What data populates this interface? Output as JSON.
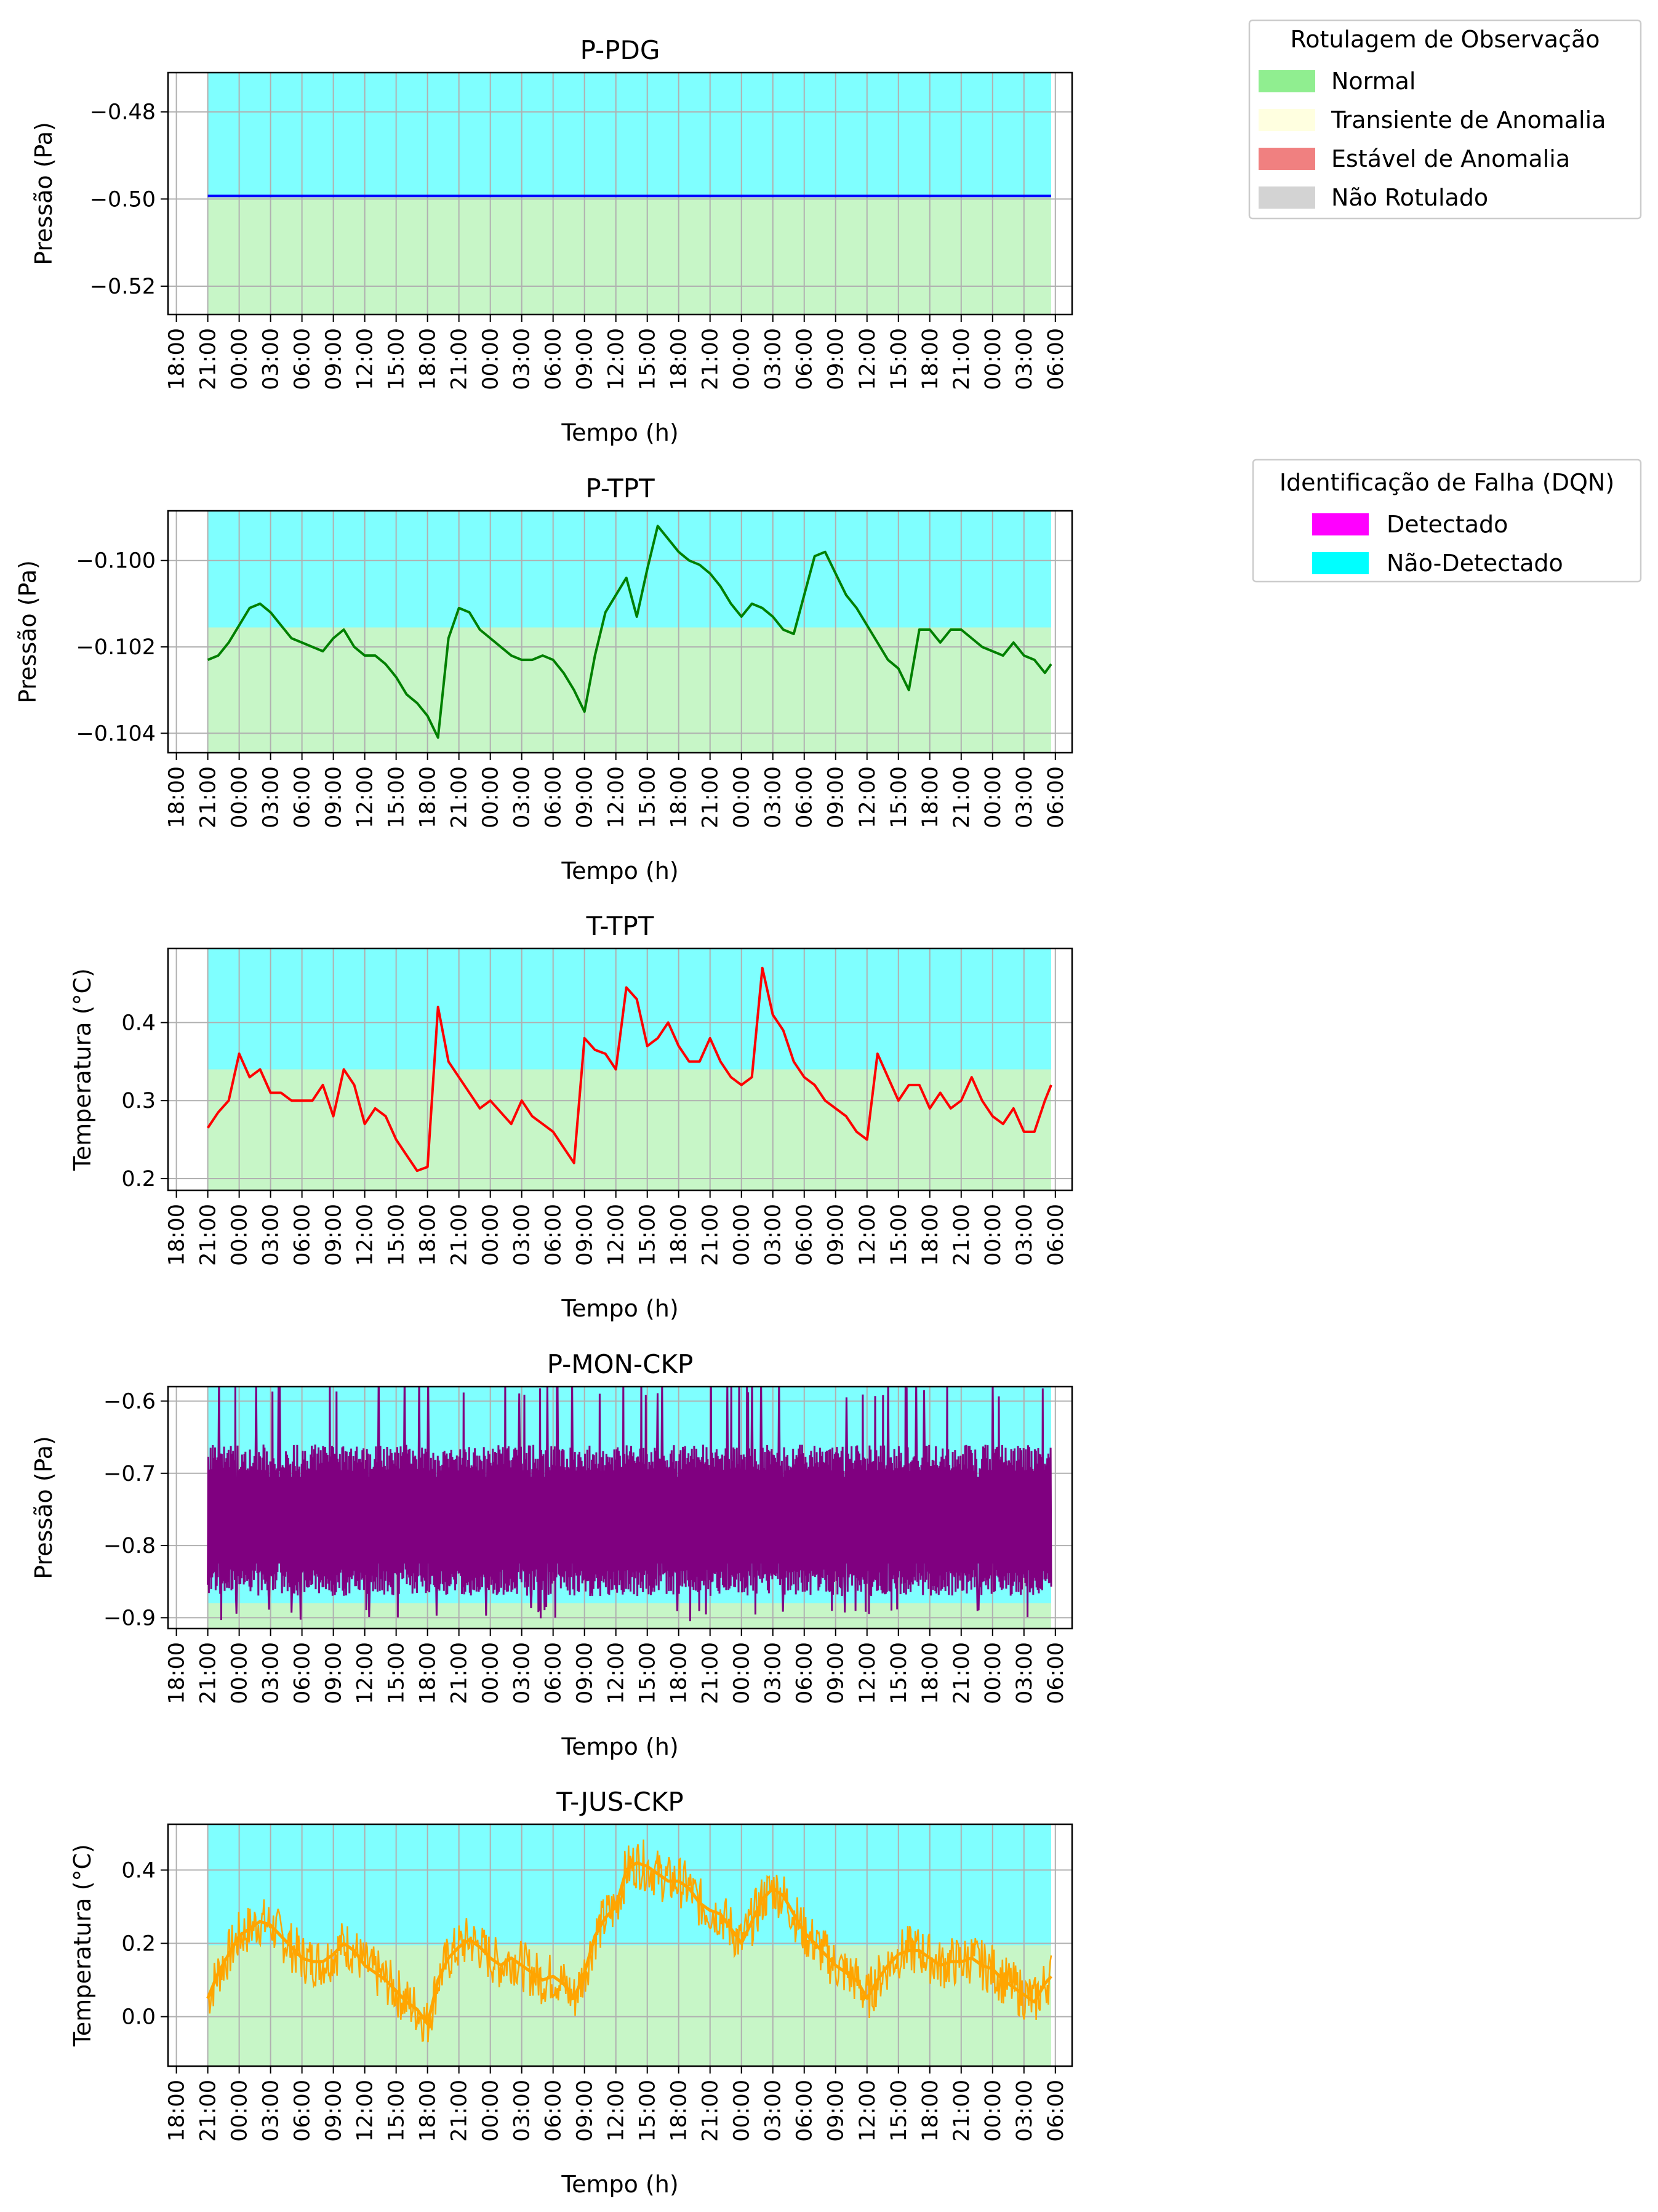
{
  "figure": {
    "legend_labels": {
      "title": "Rotulagem de Observação",
      "items": [
        {
          "label": "Normal",
          "color": "#90EE90"
        },
        {
          "label": "Transiente de Anomalia",
          "color": "#FFFFE0"
        },
        {
          "label": "Estável de Anomalia",
          "color": "#F08080"
        },
        {
          "label": "Não Rotulado",
          "color": "#D3D3D3"
        }
      ]
    },
    "legend_dqn": {
      "title": "Identificação de Falha (DQN)",
      "items": [
        {
          "label": "Detectado",
          "color": "#FF00FF"
        },
        {
          "label": "Não-Detectado",
          "color": "#00FFFF"
        }
      ]
    }
  },
  "chart_data": [
    {
      "type": "line",
      "title": "P-PDG",
      "xlabel": "Tempo (h)",
      "ylabel": "Pressão (Pa)",
      "color": "#0000FF",
      "x_ticks": [
        "18:00",
        "21:00",
        "00:00",
        "03:00",
        "06:00",
        "09:00",
        "12:00",
        "15:00",
        "18:00",
        "21:00",
        "00:00",
        "03:00",
        "06:00",
        "09:00",
        "12:00",
        "15:00",
        "18:00",
        "21:00",
        "00:00",
        "03:00",
        "06:00",
        "09:00",
        "12:00",
        "15:00",
        "18:00",
        "21:00",
        "00:00",
        "03:00",
        "06:00"
      ],
      "x_range_hours": [
        -3.8,
        82.6
      ],
      "data_x_hours": [
        0,
        80.6
      ],
      "ylim": [
        -0.5265,
        -0.471
      ],
      "yticks": [
        -0.52,
        -0.5,
        -0.48
      ],
      "y_tick_labels": [
        "−0.52",
        "−0.50",
        "−0.48"
      ],
      "y_decimals": 2,
      "regions": [
        {
          "label": "Normal",
          "color": "#90EE90",
          "x": [
            0,
            80.6
          ],
          "y": [
            -0.5265,
            -0.4993
          ]
        },
        {
          "label": "Não-Detectado",
          "color": "#00FFFF",
          "x": [
            0,
            80.6
          ],
          "y": [
            -0.4993,
            -0.471
          ]
        }
      ],
      "series": [
        {
          "x": [
            0,
            80.6
          ],
          "y": [
            -0.4993,
            -0.4993
          ]
        }
      ],
      "grid": true
    },
    {
      "type": "line",
      "title": "P-TPT",
      "xlabel": "Tempo (h)",
      "ylabel": "Pressão (Pa)",
      "color": "#008000",
      "x_ticks": [
        "18:00",
        "21:00",
        "00:00",
        "03:00",
        "06:00",
        "09:00",
        "12:00",
        "15:00",
        "18:00",
        "21:00",
        "00:00",
        "03:00",
        "06:00",
        "09:00",
        "12:00",
        "15:00",
        "18:00",
        "21:00",
        "00:00",
        "03:00",
        "06:00",
        "09:00",
        "12:00",
        "15:00",
        "18:00",
        "21:00",
        "00:00",
        "03:00",
        "06:00"
      ],
      "x_range_hours": [
        -3.8,
        82.6
      ],
      "data_x_hours": [
        0,
        80.6
      ],
      "ylim": [
        -0.10445,
        -0.09885
      ],
      "yticks": [
        -0.104,
        -0.102,
        -0.1
      ],
      "y_tick_labels": [
        "−0.104",
        "−0.102",
        "−0.100"
      ],
      "y_decimals": 5,
      "regions": [
        {
          "label": "Normal",
          "color": "#90EE90",
          "x": [
            0,
            80.6
          ],
          "y": [
            -0.10445,
            -0.10155
          ]
        },
        {
          "label": "Não-Detectado",
          "color": "#00FFFF",
          "x": [
            0,
            80.6
          ],
          "y": [
            -0.10155,
            -0.09885
          ]
        }
      ],
      "series": [
        {
          "x": [
            0,
            1,
            2,
            3,
            4,
            5,
            6,
            7,
            8,
            9,
            10,
            11,
            12,
            13,
            14,
            15,
            16,
            17,
            18,
            19,
            20,
            21,
            22,
            23,
            24,
            25,
            26,
            27,
            28,
            29,
            30,
            31,
            32,
            33,
            34,
            35,
            36,
            37,
            38,
            39,
            40,
            41,
            42,
            43,
            44,
            45,
            46,
            47,
            48,
            49,
            50,
            51,
            52,
            53,
            54,
            55,
            56,
            57,
            58,
            59,
            60,
            61,
            62,
            63,
            64,
            65,
            66,
            67,
            68,
            69,
            70,
            71,
            72,
            73,
            74,
            75,
            76,
            77,
            78,
            79,
            80,
            80.6
          ],
          "y": [
            -0.1023,
            -0.1022,
            -0.1019,
            -0.1015,
            -0.1011,
            -0.101,
            -0.1012,
            -0.1015,
            -0.1018,
            -0.1019,
            -0.102,
            -0.1021,
            -0.1018,
            -0.1016,
            -0.102,
            -0.1022,
            -0.1022,
            -0.1024,
            -0.1027,
            -0.1031,
            -0.1033,
            -0.1036,
            -0.1041,
            -0.1018,
            -0.1011,
            -0.1012,
            -0.1016,
            -0.1018,
            -0.102,
            -0.1022,
            -0.1023,
            -0.1023,
            -0.1022,
            -0.1023,
            -0.1026,
            -0.103,
            -0.1035,
            -0.1022,
            -0.1012,
            -0.1008,
            -0.1004,
            -0.1013,
            -0.1002,
            -0.0992,
            -0.0995,
            -0.0998,
            -0.1,
            -0.1001,
            -0.1003,
            -0.1006,
            -0.101,
            -0.1013,
            -0.101,
            -0.1011,
            -0.1013,
            -0.1016,
            -0.1017,
            -0.1008,
            -0.0999,
            -0.0998,
            -0.1003,
            -0.1008,
            -0.1011,
            -0.1015,
            -0.1019,
            -0.1023,
            -0.1025,
            -0.103,
            -0.1016,
            -0.1016,
            -0.1019,
            -0.1016,
            -0.1016,
            -0.1018,
            -0.102,
            -0.1021,
            -0.1022,
            -0.1019,
            -0.1022,
            -0.1023,
            -0.1026,
            -0.1024
          ]
        }
      ],
      "grid": true
    },
    {
      "type": "line",
      "title": "T-TPT",
      "xlabel": "Tempo (h)",
      "ylabel": "Temperatura (°C)",
      "color": "#FF0000",
      "x_ticks": [
        "18:00",
        "21:00",
        "00:00",
        "03:00",
        "06:00",
        "09:00",
        "12:00",
        "15:00",
        "18:00",
        "21:00",
        "00:00",
        "03:00",
        "06:00",
        "09:00",
        "12:00",
        "15:00",
        "18:00",
        "21:00",
        "00:00",
        "03:00",
        "06:00",
        "09:00",
        "12:00",
        "15:00",
        "18:00",
        "21:00",
        "00:00",
        "03:00",
        "06:00"
      ],
      "x_range_hours": [
        -3.8,
        82.6
      ],
      "data_x_hours": [
        0,
        80.6
      ],
      "ylim": [
        0.185,
        0.495
      ],
      "yticks": [
        0.2,
        0.3,
        0.4
      ],
      "y_tick_labels": [
        "0.2",
        "0.3",
        "0.4"
      ],
      "y_decimals": 3,
      "regions": [
        {
          "label": "Normal",
          "color": "#90EE90",
          "x": [
            0,
            80.6
          ],
          "y": [
            0.185,
            0.34
          ]
        },
        {
          "label": "Não-Detectado",
          "color": "#00FFFF",
          "x": [
            0,
            80.6
          ],
          "y": [
            0.34,
            0.495
          ]
        }
      ],
      "series": [
        {
          "x": [
            0,
            1,
            2,
            3,
            4,
            5,
            6,
            7,
            8,
            9,
            10,
            11,
            12,
            13,
            14,
            15,
            16,
            17,
            18,
            19,
            20,
            21,
            22,
            23,
            24,
            25,
            26,
            27,
            28,
            29,
            30,
            31,
            32,
            33,
            34,
            35,
            36,
            37,
            38,
            39,
            40,
            41,
            42,
            43,
            44,
            45,
            46,
            47,
            48,
            49,
            50,
            51,
            52,
            53,
            54,
            55,
            56,
            57,
            58,
            59,
            60,
            61,
            62,
            63,
            64,
            65,
            66,
            67,
            68,
            69,
            70,
            71,
            72,
            73,
            74,
            75,
            76,
            77,
            78,
            79,
            80,
            80.6
          ],
          "y": [
            0.265,
            0.285,
            0.3,
            0.36,
            0.33,
            0.34,
            0.31,
            0.31,
            0.3,
            0.3,
            0.3,
            0.32,
            0.28,
            0.34,
            0.32,
            0.27,
            0.29,
            0.28,
            0.25,
            0.23,
            0.21,
            0.215,
            0.42,
            0.35,
            0.33,
            0.31,
            0.29,
            0.3,
            0.285,
            0.27,
            0.3,
            0.28,
            0.27,
            0.26,
            0.24,
            0.22,
            0.38,
            0.365,
            0.36,
            0.34,
            0.445,
            0.43,
            0.37,
            0.38,
            0.4,
            0.37,
            0.35,
            0.35,
            0.38,
            0.35,
            0.33,
            0.32,
            0.33,
            0.47,
            0.41,
            0.39,
            0.35,
            0.33,
            0.32,
            0.3,
            0.29,
            0.28,
            0.26,
            0.25,
            0.36,
            0.33,
            0.3,
            0.32,
            0.32,
            0.29,
            0.31,
            0.29,
            0.3,
            0.33,
            0.3,
            0.28,
            0.27,
            0.29,
            0.26,
            0.26,
            0.3,
            0.32
          ]
        }
      ],
      "grid": true
    },
    {
      "type": "line",
      "title": "P-MON-CKP",
      "xlabel": "Tempo (h)",
      "ylabel": "Pressão (Pa)",
      "color": "#800080",
      "x_ticks": [
        "18:00",
        "21:00",
        "00:00",
        "03:00",
        "06:00",
        "09:00",
        "12:00",
        "15:00",
        "18:00",
        "21:00",
        "00:00",
        "03:00",
        "06:00",
        "09:00",
        "12:00",
        "15:00",
        "18:00",
        "21:00",
        "00:00",
        "03:00",
        "06:00",
        "09:00",
        "12:00",
        "15:00",
        "18:00",
        "21:00",
        "00:00",
        "03:00",
        "06:00"
      ],
      "x_range_hours": [
        -3.8,
        82.6
      ],
      "data_x_hours": [
        0,
        80.6
      ],
      "ylim": [
        -0.915,
        -0.58
      ],
      "yticks": [
        -0.9,
        -0.8,
        -0.7,
        -0.6
      ],
      "y_tick_labels": [
        "−0.9",
        "−0.8",
        "−0.7",
        "−0.6"
      ],
      "y_decimals": 3,
      "regions": [
        {
          "label": "Normal",
          "color": "#90EE90",
          "x": [
            0,
            80.6
          ],
          "y": [
            -0.915,
            -0.88
          ]
        },
        {
          "label": "Não-Detectado",
          "color": "#00FFFF",
          "x": [
            0,
            80.6
          ],
          "y": [
            -0.88,
            -0.58
          ]
        }
      ],
      "noise_series": {
        "center": -0.765,
        "spread": 0.105,
        "spike_high": -0.595,
        "spike_low": -0.905
      },
      "grid": true
    },
    {
      "type": "line",
      "title": "T-JUS-CKP",
      "xlabel": "Tempo (h)",
      "ylabel": "Temperatura (°C)",
      "color": "#FFA500",
      "x_ticks": [
        "18:00",
        "21:00",
        "00:00",
        "03:00",
        "06:00",
        "09:00",
        "12:00",
        "15:00",
        "18:00",
        "21:00",
        "00:00",
        "03:00",
        "06:00",
        "09:00",
        "12:00",
        "15:00",
        "18:00",
        "21:00",
        "00:00",
        "03:00",
        "06:00",
        "09:00",
        "12:00",
        "15:00",
        "18:00",
        "21:00",
        "00:00",
        "03:00",
        "06:00"
      ],
      "x_range_hours": [
        -3.8,
        82.6
      ],
      "data_x_hours": [
        0,
        80.6
      ],
      "ylim": [
        -0.135,
        0.525
      ],
      "yticks": [
        0.0,
        0.2,
        0.4
      ],
      "y_tick_labels": [
        "0.0",
        "0.2",
        "0.4"
      ],
      "y_decimals": 3,
      "regions": [
        {
          "label": "Normal",
          "color": "#90EE90",
          "x": [
            0,
            80.6
          ],
          "y": [
            -0.135,
            0.195
          ]
        },
        {
          "label": "Não-Detectado",
          "color": "#00FFFF",
          "x": [
            0,
            80.6
          ],
          "y": [
            0.195,
            0.525
          ]
        }
      ],
      "series": [
        {
          "x": [
            0,
            1,
            2,
            3,
            4,
            5,
            6,
            7,
            8,
            9,
            10,
            11,
            12,
            13,
            14,
            15,
            16,
            17,
            18,
            19,
            20,
            21,
            22,
            23,
            24,
            25,
            26,
            27,
            28,
            29,
            30,
            31,
            32,
            33,
            34,
            35,
            36,
            37,
            38,
            39,
            40,
            41,
            42,
            43,
            44,
            45,
            46,
            47,
            48,
            49,
            50,
            51,
            52,
            53,
            54,
            55,
            56,
            57,
            58,
            59,
            60,
            61,
            62,
            63,
            64,
            65,
            66,
            67,
            68,
            69,
            70,
            71,
            72,
            73,
            74,
            75,
            76,
            77,
            78,
            79,
            80,
            80.6
          ],
          "y": [
            0.05,
            0.12,
            0.17,
            0.22,
            0.24,
            0.26,
            0.25,
            0.22,
            0.19,
            0.16,
            0.15,
            0.15,
            0.17,
            0.2,
            0.18,
            0.14,
            0.12,
            0.1,
            0.07,
            0.04,
            0.02,
            -0.02,
            0.1,
            0.16,
            0.19,
            0.21,
            0.19,
            0.16,
            0.14,
            0.16,
            0.14,
            0.12,
            0.1,
            0.11,
            0.09,
            0.05,
            0.12,
            0.22,
            0.27,
            0.3,
            0.4,
            0.42,
            0.41,
            0.39,
            0.37,
            0.37,
            0.35,
            0.31,
            0.29,
            0.28,
            0.24,
            0.2,
            0.26,
            0.32,
            0.35,
            0.33,
            0.28,
            0.23,
            0.2,
            0.17,
            0.14,
            0.12,
            0.1,
            0.05,
            0.1,
            0.14,
            0.17,
            0.18,
            0.18,
            0.16,
            0.14,
            0.15,
            0.15,
            0.16,
            0.14,
            0.13,
            0.1,
            0.08,
            0.06,
            0.04,
            0.09,
            0.11
          ]
        }
      ],
      "grid": true
    }
  ]
}
